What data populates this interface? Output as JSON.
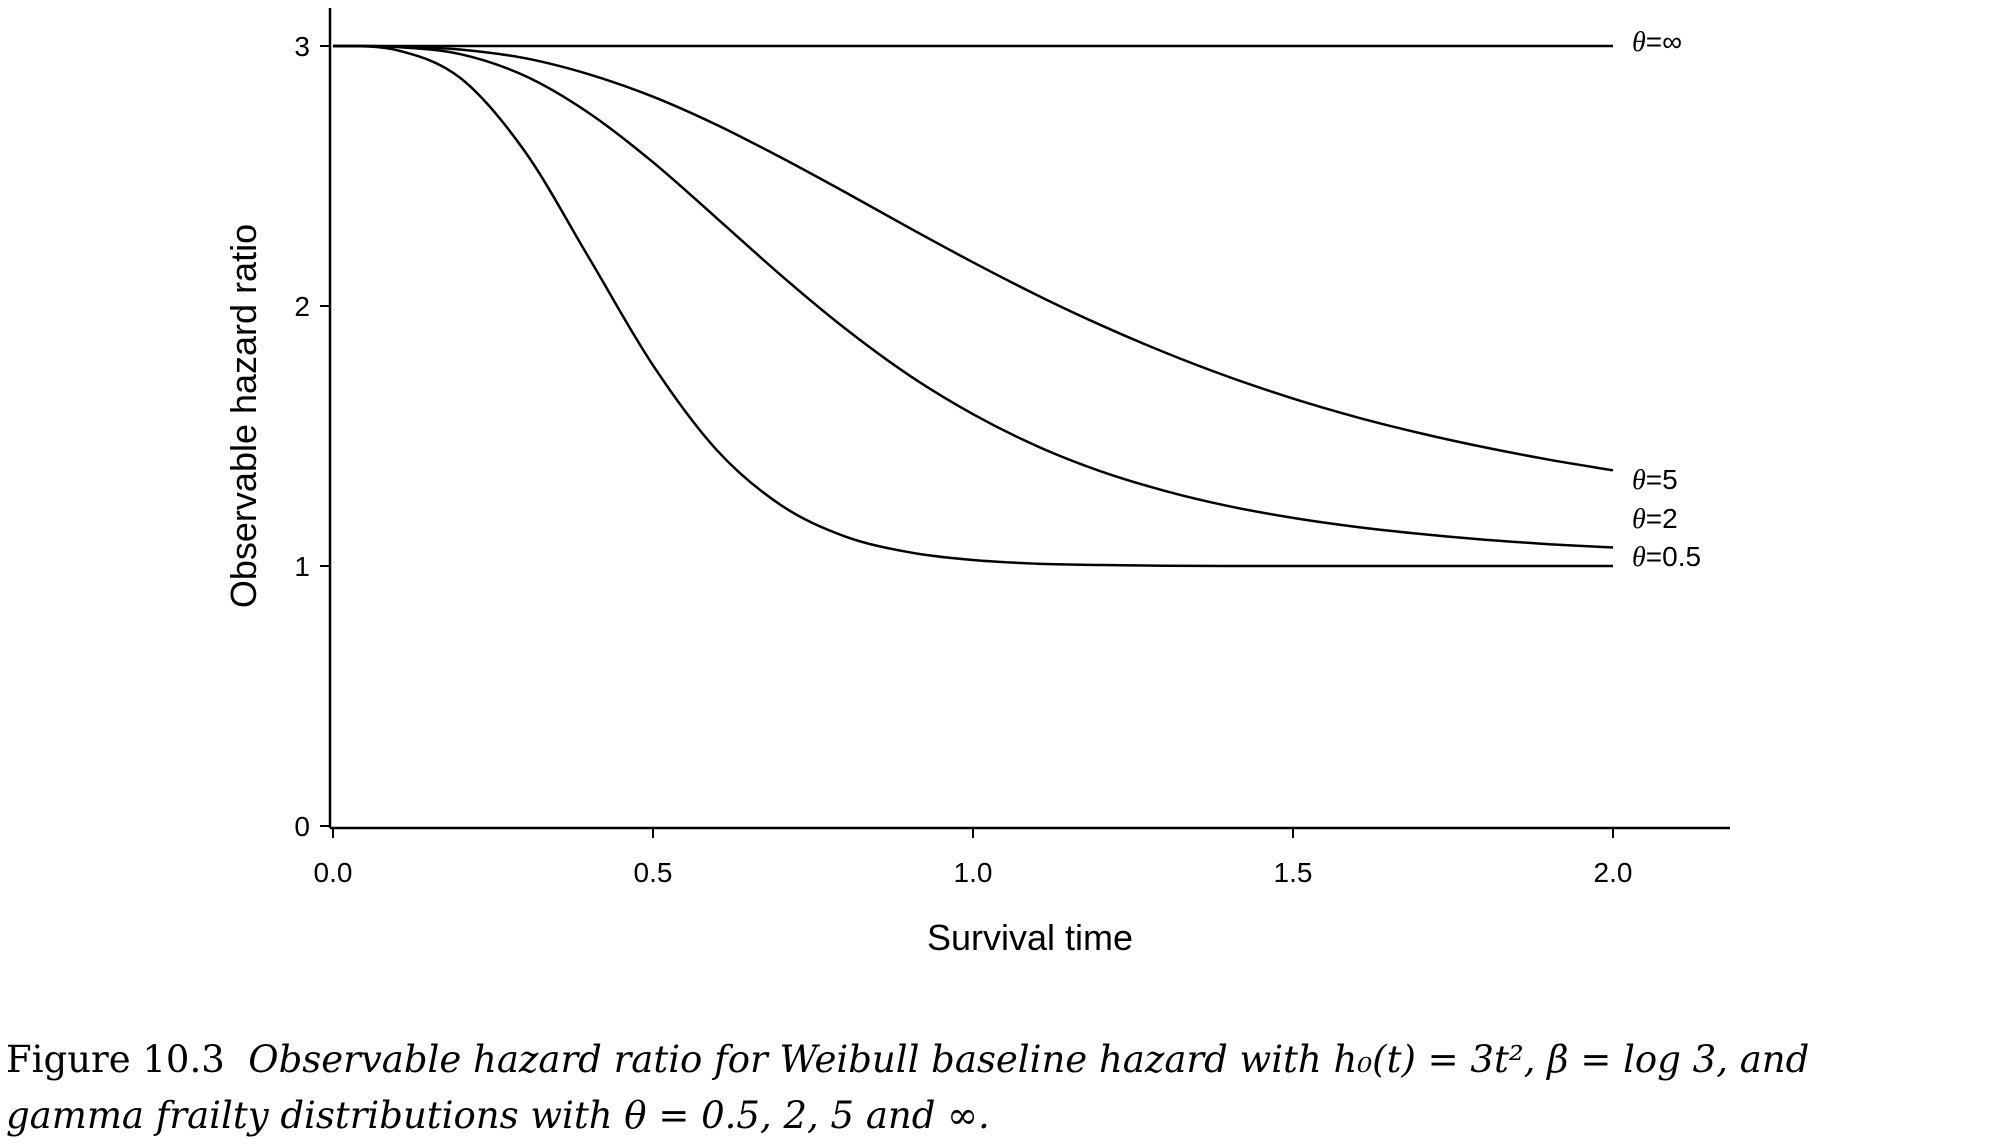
{
  "chart_data": {
    "type": "line",
    "xlabel": "Survival time",
    "ylabel": "Observable hazard ratio",
    "xlim": [
      0,
      2.2
    ],
    "ylim": [
      0,
      3.1
    ],
    "xticks": [
      0.0,
      0.5,
      1.0,
      1.5,
      2.0
    ],
    "xtick_labels": [
      "0.0",
      "0.5",
      "1.0",
      "1.5",
      "2.0"
    ],
    "yticks": [
      0,
      1,
      2,
      3
    ],
    "ytick_labels": [
      "0",
      "1",
      "2",
      "3"
    ],
    "grid": false,
    "legend": "inline labels at line ends",
    "series": [
      {
        "name": "θ=∞",
        "x": [
          0.0,
          0.1,
          0.2,
          0.3,
          0.4,
          0.5,
          0.6,
          0.7,
          0.8,
          0.9,
          1.0,
          1.1,
          1.2,
          1.3,
          1.4,
          1.5,
          1.6,
          1.7,
          1.8,
          1.9,
          2.0
        ],
        "y": [
          3.0,
          3.0,
          3.0,
          3.0,
          3.0,
          3.0,
          3.0,
          3.0,
          3.0,
          3.0,
          3.0,
          3.0,
          3.0,
          3.0,
          3.0,
          3.0,
          3.0,
          3.0,
          3.0,
          3.0,
          3.0
        ]
      },
      {
        "name": "θ=5",
        "x": [
          0.0,
          0.1,
          0.2,
          0.3,
          0.4,
          0.5,
          0.6,
          0.7,
          0.8,
          0.9,
          1.0,
          1.1,
          1.2,
          1.3,
          1.4,
          1.5,
          1.6,
          1.7,
          1.8,
          1.9,
          2.0
        ],
        "y": [
          3.0,
          2.998,
          2.986,
          2.953,
          2.891,
          2.805,
          2.696,
          2.571,
          2.438,
          2.301,
          2.168,
          2.042,
          1.926,
          1.821,
          1.727,
          1.644,
          1.572,
          1.51,
          1.456,
          1.409,
          1.368
        ]
      },
      {
        "name": "θ=2",
        "x": [
          0.0,
          0.1,
          0.2,
          0.3,
          0.4,
          0.5,
          0.6,
          0.7,
          0.8,
          0.9,
          1.0,
          1.1,
          1.2,
          1.3,
          1.4,
          1.5,
          1.6,
          1.7,
          1.8,
          1.9,
          2.0
        ],
        "y": [
          3.0,
          2.996,
          2.968,
          2.885,
          2.742,
          2.553,
          2.337,
          2.118,
          1.914,
          1.734,
          1.584,
          1.461,
          1.364,
          1.289,
          1.23,
          1.185,
          1.15,
          1.123,
          1.101,
          1.084,
          1.071
        ]
      },
      {
        "name": "θ=0.5",
        "x": [
          0.0,
          0.1,
          0.2,
          0.3,
          0.4,
          0.5,
          0.6,
          0.7,
          0.8,
          0.9,
          1.0,
          1.1,
          1.2,
          1.3,
          1.4,
          1.5,
          1.6,
          1.7,
          1.8,
          1.9,
          2.0
        ],
        "y": [
          3.0,
          2.984,
          2.875,
          2.594,
          2.185,
          1.772,
          1.445,
          1.234,
          1.114,
          1.053,
          1.023,
          1.009,
          1.004,
          1.001,
          1.0,
          1.0,
          1.0,
          1.0,
          1.0,
          1.0,
          1.0
        ]
      }
    ]
  },
  "labels": {
    "inf": {
      "theta": "θ",
      "rest": "=∞"
    },
    "five": {
      "theta": "θ",
      "rest": "=5"
    },
    "two": {
      "theta": "θ",
      "rest": "=2"
    },
    "half": {
      "theta": "θ",
      "rest": "=0.5"
    }
  },
  "caption": {
    "number": "Figure 10.3",
    "line1": "Observable hazard ratio for Weibull baseline hazard with h₀(t) = 3t², β = log 3, and",
    "line2": "gamma frailty distributions with θ = 0.5, 2, 5 and ∞."
  }
}
